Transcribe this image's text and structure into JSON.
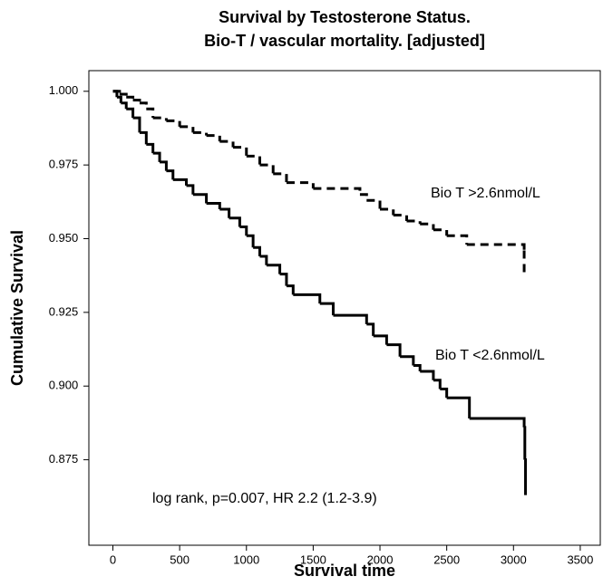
{
  "chart_data": {
    "type": "step",
    "title": [
      "Survival by Testosterone Status.",
      "Bio-T / vascular mortality. [adjusted]"
    ],
    "x_label": "Survival time",
    "y_label": "Cumulative Survival",
    "annotation": "log rank, p=0.007, HR 2.2 (1.2-3.9)",
    "xlim": [
      -180,
      3650
    ],
    "ylim": [
      1.007,
      0.846
    ],
    "xticks": [
      0,
      500,
      1000,
      1500,
      2000,
      2500,
      3000,
      3500
    ],
    "yticks": [
      {
        "value": 1.0,
        "label": "1.000"
      },
      {
        "value": 0.975,
        "label": "0.975"
      },
      {
        "value": 0.95,
        "label": "0.950"
      },
      {
        "value": 0.925,
        "label": "0.925"
      },
      {
        "value": 0.9,
        "label": "0.900"
      },
      {
        "value": 0.875,
        "label": "0.875"
      }
    ],
    "series": [
      {
        "name": "Bio T >2.6nmol/L",
        "color": "#000000",
        "dash": "dashed",
        "x": [
          0,
          50,
          100,
          150,
          200,
          250,
          300,
          400,
          500,
          600,
          700,
          800,
          900,
          1000,
          1100,
          1200,
          1300,
          1500,
          1850,
          1900,
          2000,
          2100,
          2200,
          2300,
          2400,
          2500,
          2650,
          3080,
          3080
        ],
        "values": [
          1.0,
          0.999,
          0.998,
          0.997,
          0.996,
          0.994,
          0.991,
          0.99,
          0.988,
          0.986,
          0.985,
          0.983,
          0.981,
          0.978,
          0.975,
          0.972,
          0.969,
          0.967,
          0.965,
          0.963,
          0.96,
          0.958,
          0.956,
          0.955,
          0.953,
          0.951,
          0.948,
          0.946,
          0.937
        ]
      },
      {
        "name": "Bio T <2.6nmol/L",
        "color": "#000000",
        "dash": "solid",
        "x": [
          0,
          30,
          60,
          100,
          150,
          200,
          250,
          300,
          350,
          400,
          450,
          550,
          600,
          700,
          800,
          870,
          950,
          1000,
          1050,
          1100,
          1150,
          1250,
          1300,
          1350,
          1550,
          1650,
          1900,
          1950,
          2050,
          2150,
          2250,
          2300,
          2400,
          2450,
          2500,
          2670,
          3080,
          3085,
          3090
        ],
        "values": [
          1.0,
          0.998,
          0.996,
          0.994,
          0.991,
          0.986,
          0.982,
          0.979,
          0.976,
          0.973,
          0.97,
          0.968,
          0.965,
          0.962,
          0.96,
          0.957,
          0.954,
          0.951,
          0.947,
          0.944,
          0.941,
          0.938,
          0.934,
          0.931,
          0.928,
          0.924,
          0.921,
          0.917,
          0.914,
          0.91,
          0.907,
          0.905,
          0.902,
          0.899,
          0.896,
          0.889,
          0.886,
          0.875,
          0.863
        ]
      }
    ]
  }
}
